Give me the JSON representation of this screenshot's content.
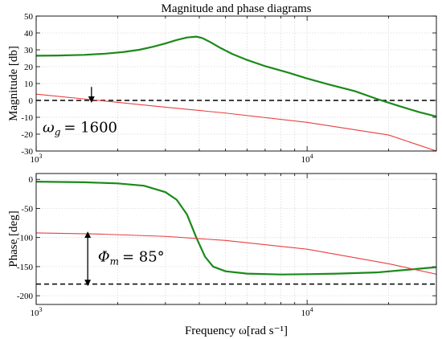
{
  "chart_data": [
    {
      "type": "line",
      "title": "Magnitude and phase diagrams",
      "xlabel": "",
      "ylabel": "Magnitude [db]",
      "xscale": "log",
      "xlim": [
        1000,
        30000
      ],
      "ylim": [
        -30,
        50
      ],
      "yticks": [
        -30,
        -20,
        -10,
        0,
        10,
        20,
        30,
        40,
        50
      ],
      "xtick_labels": [
        {
          "value": 1000,
          "base": "10",
          "exp": "3"
        },
        {
          "value": 10000,
          "base": "10",
          "exp": "4"
        }
      ],
      "grid": true,
      "series": [
        {
          "color": "#1a8a1a",
          "x": [
            1000,
            1200,
            1500,
            1800,
            2100,
            2400,
            2700,
            3000,
            3300,
            3600,
            3900,
            4100,
            4400,
            4800,
            5300,
            6000,
            7000,
            8500,
            10000,
            12000,
            15000,
            18000,
            22000,
            26000,
            30000
          ],
          "y": [
            26.5,
            26.6,
            27,
            27.7,
            28.7,
            30,
            31.8,
            33.8,
            35.8,
            37.3,
            37.8,
            37,
            34.5,
            31,
            27.5,
            24,
            20.3,
            16.5,
            13,
            9.5,
            5.5,
            1,
            -3.5,
            -7,
            -9.5
          ]
        },
        {
          "color": "#e84040",
          "x": [
            1000,
            1700,
            3000,
            5000,
            10000,
            20000,
            30000
          ],
          "y": [
            3.7,
            0,
            -4,
            -7.5,
            -13,
            -20.5,
            -30
          ]
        }
      ],
      "reference_line": {
        "y": 0,
        "style": "dashed",
        "color": "#000000"
      },
      "annotation": {
        "label": "ω",
        "subscript": "g",
        "text": "= 1600",
        "arrow_at_x": 1600,
        "arrow_from_y": 8,
        "arrow_to_y": 0.5,
        "text_at": {
          "x": 1000,
          "y": -16
        }
      }
    },
    {
      "type": "line",
      "title": "",
      "xlabel": "Frequency ω[rad s⁻¹]",
      "ylabel": "Phase [deg]",
      "xscale": "log",
      "xlim": [
        1000,
        30000
      ],
      "ylim": [
        -215,
        10
      ],
      "yticks": [
        -200,
        -150,
        -100,
        -50,
        0
      ],
      "xtick_labels": [
        {
          "value": 1000,
          "base": "10",
          "exp": "3"
        },
        {
          "value": 10000,
          "base": "10",
          "exp": "4"
        }
      ],
      "grid": true,
      "series": [
        {
          "color": "#1a8a1a",
          "x": [
            1000,
            1500,
            2000,
            2500,
            3000,
            3300,
            3600,
            3900,
            4200,
            4500,
            5000,
            6000,
            8000,
            10000,
            13000,
            18000,
            24000,
            30000
          ],
          "y": [
            -4,
            -5,
            -7,
            -11,
            -22,
            -35,
            -60,
            -100,
            -133,
            -150,
            -158,
            -162,
            -163.5,
            -163,
            -162,
            -160,
            -155,
            -151
          ]
        },
        {
          "color": "#e84040",
          "x": [
            1000,
            1700,
            3000,
            5000,
            10000,
            20000,
            30000
          ],
          "y": [
            -92,
            -94,
            -98,
            -105,
            -120,
            -145,
            -163
          ]
        }
      ],
      "reference_line": {
        "y": -180,
        "style": "dashed",
        "color": "#000000"
      },
      "annotation": {
        "label": "Φ",
        "subscript": "m",
        "text": "= 85°",
        "arrow_at_x": 1550,
        "arrow_from_y": -95,
        "arrow_to_y": -178,
        "text_at": {
          "x": 1600,
          "y": -133
        }
      }
    }
  ]
}
